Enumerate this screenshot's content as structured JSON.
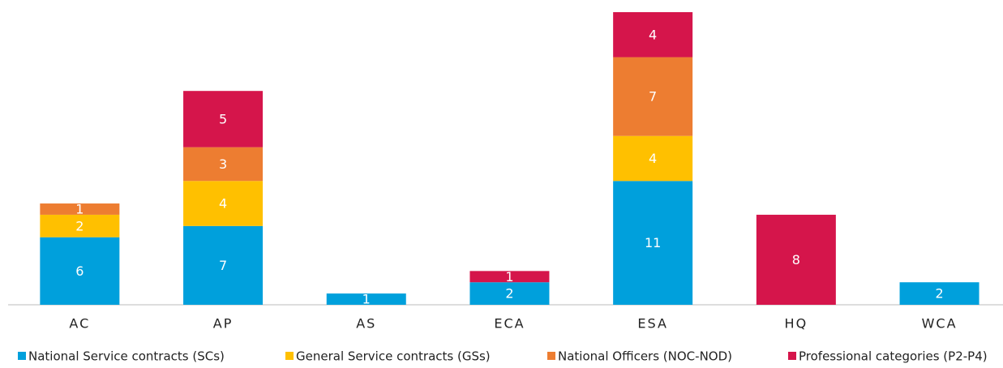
{
  "chart_data": {
    "type": "stacked_bar",
    "categories": [
      "AC",
      "AP",
      "AS",
      "ECA",
      "ESA",
      "HQ",
      "WCA"
    ],
    "series": [
      {
        "name": "National Service contracts (SCs)",
        "color": "#00a0dc",
        "values": [
          6,
          7,
          1,
          2,
          11,
          null,
          2
        ]
      },
      {
        "name": "General Service contracts (GSs)",
        "color": "#ffc000",
        "values": [
          2,
          4,
          null,
          null,
          4,
          null,
          null
        ]
      },
      {
        "name": "National Officers (NOC-NOD)",
        "color": "#ed7d31",
        "values": [
          1,
          3,
          null,
          null,
          7,
          null,
          null
        ]
      },
      {
        "name": "Professional categories (P2-P4)",
        "color": "#d5154b",
        "values": [
          null,
          5,
          null,
          1,
          4,
          8,
          null
        ]
      }
    ],
    "ylim": [
      0,
      26
    ],
    "legend": "bottom"
  }
}
